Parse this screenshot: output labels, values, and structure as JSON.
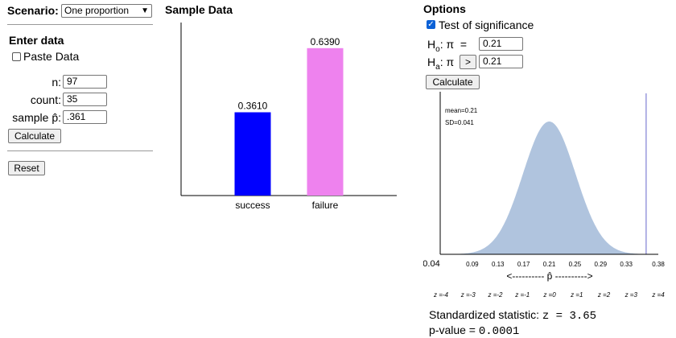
{
  "left_panel": {
    "scenario_label": "Scenario:",
    "scenario_value": "One proportion",
    "enter_data_heading": "Enter data",
    "paste_data_label": "Paste Data",
    "paste_data_checked": false,
    "fields": [
      {
        "label": "n:",
        "value": "97"
      },
      {
        "label": "count:",
        "value": "35"
      },
      {
        "label": "sample p̂:",
        "value": ".361"
      }
    ],
    "calculate_label": "Calculate",
    "reset_label": "Reset"
  },
  "sample_data": {
    "heading": "Sample Data",
    "bar_colors": [
      "#0000ff",
      "#ee82ee"
    ]
  },
  "chart_data": {
    "type": "bar",
    "categories": [
      "success",
      "failure"
    ],
    "values": [
      0.361,
      0.639
    ],
    "data_labels": [
      "0.3610",
      "0.6390"
    ],
    "ylim": [
      0,
      0.75
    ]
  },
  "options": {
    "heading": "Options",
    "test_label": "Test of significance",
    "test_checked": true,
    "h0_main": "H",
    "h0_sub": "o",
    "h0_rest": ": π  =",
    "h0_value": "0.21",
    "ha_main": "H",
    "ha_sub": "a",
    "ha_rest": ": π",
    "ha_operator": ">",
    "ha_value": "0.21",
    "calculate_label": "Calculate"
  },
  "distribution": {
    "mean_label": "mean=0.21",
    "sd_label": "SD=0.041",
    "mean": 0.21,
    "sd": 0.041,
    "x_min": 0.04,
    "x_max": 0.38,
    "observed": 0.361,
    "ticks": [
      "0.04",
      "0.09",
      "0.13",
      "0.17",
      "0.21",
      "0.25",
      "0.29",
      "0.33",
      "0.38"
    ],
    "tick_values": [
      0.04,
      0.09,
      0.13,
      0.17,
      0.21,
      0.25,
      0.29,
      0.33,
      0.38
    ],
    "axis_caption": "<---------- p̂ ---------->",
    "z_labels": [
      "z =-4",
      "z =-3",
      "z =-2",
      "z =-1",
      "z =0",
      "z =1",
      "z =2",
      "z =3",
      "z =4"
    ],
    "curve_color": "#b0c4de",
    "observed_line_color": "#9999dd"
  },
  "results": {
    "statistic_label": "Standardized statistic:",
    "statistic_value": "z = 3.65",
    "pvalue_label": "p-value =",
    "pvalue_value": "0.0001"
  }
}
